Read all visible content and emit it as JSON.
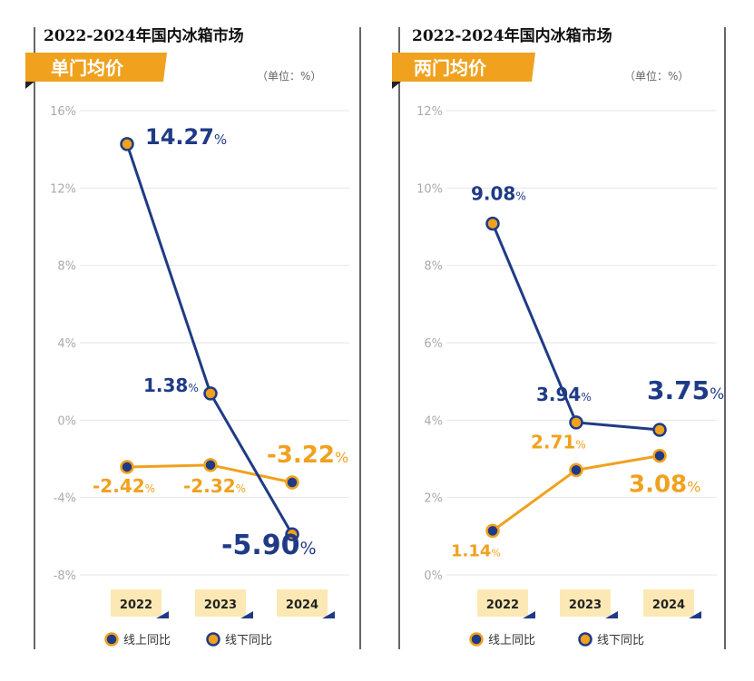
{
  "panels": [
    {
      "title": "2022-2024年国内冰箱市场",
      "badge": "单门均价",
      "unit": "（单位：%）",
      "legend": [
        "线上同比",
        "线下同比"
      ]
    },
    {
      "title": "2022-2024年国内冰箱市场",
      "badge": "两门均价",
      "unit": "（单位：%）",
      "legend": [
        "线上同比",
        "线下同比"
      ]
    }
  ],
  "colors": {
    "online": "#f0a11e",
    "offline": "#1f3b86",
    "badge": "#f0a11e",
    "grid": "#e6e6e6",
    "year_tag": "#fbe8b4"
  },
  "chart_data": [
    {
      "type": "line",
      "title": "2022-2024年国内冰箱市场",
      "subtitle": "单门均价",
      "unit": "%",
      "categories": [
        "2022",
        "2023",
        "2024"
      ],
      "series": [
        {
          "name": "线上同比",
          "values": [
            -2.42,
            -2.32,
            -3.22
          ],
          "labels": [
            "-2.42%",
            "-2.32%",
            "-3.22%"
          ]
        },
        {
          "name": "线下同比",
          "values": [
            14.27,
            1.38,
            -5.9
          ],
          "labels": [
            "14.27%",
            "1.38%",
            "-5.90%"
          ]
        }
      ],
      "yticks": [
        "16%",
        "12%",
        "8%",
        "4%",
        "0%",
        "-4%",
        "-8%"
      ],
      "ylim": [
        -8,
        16
      ],
      "grid": true,
      "legend": "bottom"
    },
    {
      "type": "line",
      "title": "2022-2024年国内冰箱市场",
      "subtitle": "两门均价",
      "unit": "%",
      "categories": [
        "2022",
        "2023",
        "2024"
      ],
      "series": [
        {
          "name": "线上同比",
          "values": [
            1.14,
            2.71,
            3.08
          ],
          "labels": [
            "1.14%",
            "2.71%",
            "3.08%"
          ]
        },
        {
          "name": "线下同比",
          "values": [
            9.08,
            3.94,
            3.75
          ],
          "labels": [
            "9.08%",
            "3.94%",
            "3.75%"
          ]
        }
      ],
      "yticks": [
        "12%",
        "10%",
        "8%",
        "6%",
        "4%",
        "2%",
        "0%"
      ],
      "ylim": [
        0,
        12
      ],
      "grid": true,
      "legend": "bottom"
    }
  ]
}
